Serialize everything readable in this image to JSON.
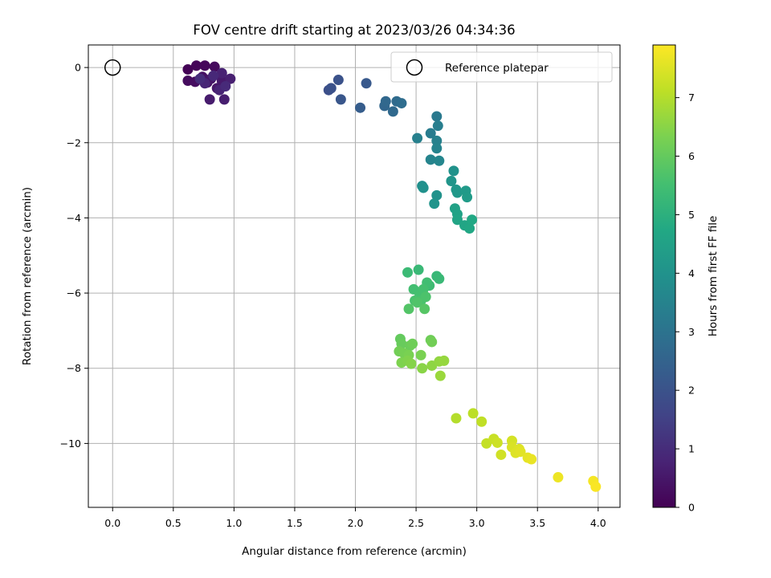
{
  "chart_data": {
    "type": "scatter",
    "title": "FOV centre drift starting at 2023/03/26 04:34:36",
    "xlabel": "Angular distance from reference (arcmin)",
    "ylabel": "Rotation from reference (arcmin)",
    "xlim": [
      -0.2,
      4.18
    ],
    "ylim": [
      -11.7,
      0.6
    ],
    "xticks": [
      "0.0",
      "0.5",
      "1.0",
      "1.5",
      "2.0",
      "2.5",
      "3.0",
      "3.5",
      "4.0"
    ],
    "xtick_values": [
      0,
      0.5,
      1,
      1.5,
      2,
      2.5,
      3,
      3.5,
      4
    ],
    "yticks": [
      "0",
      "−2",
      "−4",
      "−6",
      "−8",
      "−10"
    ],
    "ytick_values": [
      0,
      -2,
      -4,
      -6,
      -8,
      -10
    ],
    "grid": true,
    "legend": {
      "position": "top-right",
      "entries": [
        "Reference platepar"
      ]
    },
    "reference_point": {
      "name": "Reference platepar",
      "x": 0,
      "y": 0
    },
    "colorbar": {
      "label": "Hours from first FF file",
      "colormap": "viridis",
      "range": [
        0,
        7.9
      ],
      "ticks": [
        "0",
        "1",
        "2",
        "3",
        "4",
        "5",
        "6",
        "7"
      ],
      "tick_values": [
        0,
        1,
        2,
        3,
        4,
        5,
        6,
        7
      ]
    },
    "points": [
      {
        "x": 0.62,
        "y": -0.05,
        "h": 0.05
      },
      {
        "x": 0.69,
        "y": 0.05,
        "h": 0.1
      },
      {
        "x": 0.76,
        "y": 0.05,
        "h": 0.15
      },
      {
        "x": 0.84,
        "y": 0.02,
        "h": 0.2
      },
      {
        "x": 0.62,
        "y": -0.35,
        "h": 0.25
      },
      {
        "x": 0.68,
        "y": -0.38,
        "h": 0.3
      },
      {
        "x": 0.74,
        "y": -0.25,
        "h": 0.35
      },
      {
        "x": 0.78,
        "y": -0.4,
        "h": 0.4
      },
      {
        "x": 0.81,
        "y": -0.3,
        "h": 0.45
      },
      {
        "x": 0.86,
        "y": -0.55,
        "h": 0.5
      },
      {
        "x": 0.9,
        "y": -0.35,
        "h": 0.55
      },
      {
        "x": 0.8,
        "y": -0.85,
        "h": 0.6
      },
      {
        "x": 0.92,
        "y": -0.85,
        "h": 0.65
      },
      {
        "x": 0.97,
        "y": -0.3,
        "h": 0.7
      },
      {
        "x": 0.9,
        "y": -0.15,
        "h": 0.75
      },
      {
        "x": 0.88,
        "y": -0.6,
        "h": 0.8
      },
      {
        "x": 0.76,
        "y": -0.42,
        "h": 0.85
      },
      {
        "x": 0.83,
        "y": -0.22,
        "h": 0.9
      },
      {
        "x": 0.93,
        "y": -0.5,
        "h": 0.95
      },
      {
        "x": 0.72,
        "y": -0.3,
        "h": 1.0
      },
      {
        "x": 1.78,
        "y": -0.6,
        "h": 1.9
      },
      {
        "x": 1.8,
        "y": -0.55,
        "h": 1.95
      },
      {
        "x": 1.86,
        "y": -0.33,
        "h": 2.0
      },
      {
        "x": 1.88,
        "y": -0.85,
        "h": 2.1
      },
      {
        "x": 2.09,
        "y": -0.42,
        "h": 2.2
      },
      {
        "x": 2.04,
        "y": -1.07,
        "h": 2.3
      },
      {
        "x": 2.24,
        "y": -1.02,
        "h": 2.6
      },
      {
        "x": 2.25,
        "y": -0.9,
        "h": 2.65
      },
      {
        "x": 2.31,
        "y": -1.17,
        "h": 2.7
      },
      {
        "x": 2.34,
        "y": -0.9,
        "h": 2.75
      },
      {
        "x": 2.38,
        "y": -0.95,
        "h": 2.8
      },
      {
        "x": 2.67,
        "y": -1.3,
        "h": 3.2
      },
      {
        "x": 2.62,
        "y": -1.75,
        "h": 3.3
      },
      {
        "x": 2.68,
        "y": -1.55,
        "h": 3.35
      },
      {
        "x": 2.51,
        "y": -1.88,
        "h": 3.4
      },
      {
        "x": 2.67,
        "y": -1.95,
        "h": 3.45
      },
      {
        "x": 2.67,
        "y": -2.15,
        "h": 3.5
      },
      {
        "x": 2.62,
        "y": -2.45,
        "h": 3.55
      },
      {
        "x": 2.69,
        "y": -2.48,
        "h": 3.6
      },
      {
        "x": 2.55,
        "y": -3.15,
        "h": 3.9
      },
      {
        "x": 2.56,
        "y": -3.2,
        "h": 3.95
      },
      {
        "x": 2.67,
        "y": -3.4,
        "h": 4.0
      },
      {
        "x": 2.65,
        "y": -3.62,
        "h": 4.05
      },
      {
        "x": 2.81,
        "y": -2.75,
        "h": 4.0
      },
      {
        "x": 2.79,
        "y": -3.02,
        "h": 4.1
      },
      {
        "x": 2.83,
        "y": -3.25,
        "h": 4.15
      },
      {
        "x": 2.84,
        "y": -3.33,
        "h": 4.2
      },
      {
        "x": 2.91,
        "y": -3.28,
        "h": 4.25
      },
      {
        "x": 2.92,
        "y": -3.45,
        "h": 4.3
      },
      {
        "x": 2.82,
        "y": -3.75,
        "h": 4.5
      },
      {
        "x": 2.84,
        "y": -3.9,
        "h": 4.55
      },
      {
        "x": 2.84,
        "y": -4.05,
        "h": 4.6
      },
      {
        "x": 2.9,
        "y": -4.2,
        "h": 4.65
      },
      {
        "x": 2.94,
        "y": -4.28,
        "h": 4.7
      },
      {
        "x": 2.96,
        "y": -4.05,
        "h": 4.75
      },
      {
        "x": 2.52,
        "y": -5.38,
        "h": 5.3
      },
      {
        "x": 2.43,
        "y": -5.45,
        "h": 5.35
      },
      {
        "x": 2.67,
        "y": -5.55,
        "h": 5.25
      },
      {
        "x": 2.69,
        "y": -5.62,
        "h": 5.3
      },
      {
        "x": 2.61,
        "y": -5.8,
        "h": 5.4
      },
      {
        "x": 2.59,
        "y": -5.72,
        "h": 5.45
      },
      {
        "x": 2.48,
        "y": -5.9,
        "h": 5.5
      },
      {
        "x": 2.53,
        "y": -6.05,
        "h": 5.55
      },
      {
        "x": 2.56,
        "y": -5.9,
        "h": 5.55
      },
      {
        "x": 2.49,
        "y": -6.2,
        "h": 5.6
      },
      {
        "x": 2.54,
        "y": -6.2,
        "h": 5.6
      },
      {
        "x": 2.58,
        "y": -6.1,
        "h": 5.65
      },
      {
        "x": 2.51,
        "y": -6.25,
        "h": 5.7
      },
      {
        "x": 2.44,
        "y": -6.42,
        "h": 5.75
      },
      {
        "x": 2.57,
        "y": -6.42,
        "h": 5.8
      },
      {
        "x": 2.37,
        "y": -7.22,
        "h": 6.0
      },
      {
        "x": 2.38,
        "y": -7.35,
        "h": 6.05
      },
      {
        "x": 2.45,
        "y": -7.4,
        "h": 6.1
      },
      {
        "x": 2.47,
        "y": -7.35,
        "h": 6.15
      },
      {
        "x": 2.62,
        "y": -7.25,
        "h": 6.15
      },
      {
        "x": 2.63,
        "y": -7.3,
        "h": 6.2
      },
      {
        "x": 2.36,
        "y": -7.55,
        "h": 6.2
      },
      {
        "x": 2.4,
        "y": -7.6,
        "h": 6.25
      },
      {
        "x": 2.44,
        "y": -7.65,
        "h": 6.3
      },
      {
        "x": 2.54,
        "y": -7.65,
        "h": 6.3
      },
      {
        "x": 2.38,
        "y": -7.85,
        "h": 6.35
      },
      {
        "x": 2.43,
        "y": -7.8,
        "h": 6.4
      },
      {
        "x": 2.46,
        "y": -7.88,
        "h": 6.45
      },
      {
        "x": 2.55,
        "y": -8.0,
        "h": 6.5
      },
      {
        "x": 2.63,
        "y": -7.93,
        "h": 6.55
      },
      {
        "x": 2.69,
        "y": -7.82,
        "h": 6.6
      },
      {
        "x": 2.73,
        "y": -7.8,
        "h": 6.65
      },
      {
        "x": 2.7,
        "y": -8.2,
        "h": 6.7
      },
      {
        "x": 2.83,
        "y": -9.33,
        "h": 7.0
      },
      {
        "x": 2.97,
        "y": -9.2,
        "h": 7.1
      },
      {
        "x": 3.04,
        "y": -9.42,
        "h": 7.15
      },
      {
        "x": 3.08,
        "y": -10.0,
        "h": 7.2
      },
      {
        "x": 3.14,
        "y": -9.88,
        "h": 7.25
      },
      {
        "x": 3.17,
        "y": -9.98,
        "h": 7.3
      },
      {
        "x": 3.2,
        "y": -10.3,
        "h": 7.35
      },
      {
        "x": 3.29,
        "y": -9.93,
        "h": 7.4
      },
      {
        "x": 3.29,
        "y": -10.1,
        "h": 7.45
      },
      {
        "x": 3.32,
        "y": -10.25,
        "h": 7.5
      },
      {
        "x": 3.35,
        "y": -10.15,
        "h": 7.5
      },
      {
        "x": 3.36,
        "y": -10.22,
        "h": 7.55
      },
      {
        "x": 3.42,
        "y": -10.38,
        "h": 7.6
      },
      {
        "x": 3.45,
        "y": -10.42,
        "h": 7.65
      },
      {
        "x": 3.67,
        "y": -10.9,
        "h": 7.7
      },
      {
        "x": 3.96,
        "y": -11.0,
        "h": 7.8
      },
      {
        "x": 3.98,
        "y": -11.15,
        "h": 7.85
      }
    ]
  }
}
